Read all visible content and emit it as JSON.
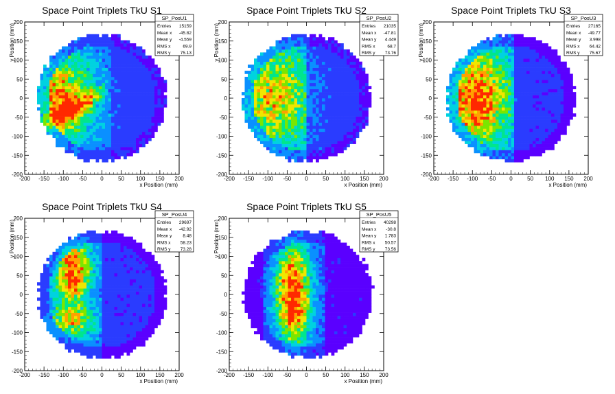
{
  "chart_data": [
    {
      "type": "heatmap",
      "title": "Space Point Triplets TkU S1",
      "xlabel": "x Position (mm)",
      "ylabel": "y Position (mm)",
      "xlim": [
        -200,
        200
      ],
      "ylim": [
        -200,
        200
      ],
      "xticks": [
        -200,
        -150,
        -100,
        -50,
        0,
        50,
        100,
        150,
        200
      ],
      "yticks": [
        -200,
        -150,
        -100,
        -50,
        0,
        50,
        100,
        150,
        200
      ],
      "stats": {
        "name": "SP_PosU1",
        "rows": [
          {
            "label": "Entries",
            "value": "15159"
          },
          {
            "label": "Mean x",
            "value": "-45.82"
          },
          {
            "label": "Mean y",
            "value": "-4.559"
          },
          {
            "label": "RMS x",
            "value": "69.9"
          },
          {
            "label": "RMS y",
            "value": "75.13"
          }
        ]
      }
    },
    {
      "type": "heatmap",
      "title": "Space Point Triplets TkU S2",
      "xlabel": "x Position (mm)",
      "ylabel": "y Position (mm)",
      "xlim": [
        -200,
        200
      ],
      "ylim": [
        -200,
        200
      ],
      "xticks": [
        -200,
        -150,
        -100,
        -50,
        0,
        50,
        100,
        150,
        200
      ],
      "yticks": [
        -200,
        -150,
        -100,
        -50,
        0,
        50,
        100,
        150,
        200
      ],
      "stats": {
        "name": "SP_PosU2",
        "rows": [
          {
            "label": "Entries",
            "value": "21035"
          },
          {
            "label": "Mean x",
            "value": "-47.81"
          },
          {
            "label": "Mean y",
            "value": "4.449"
          },
          {
            "label": "RMS x",
            "value": "68.7"
          },
          {
            "label": "RMS y",
            "value": "73.76"
          }
        ]
      }
    },
    {
      "type": "heatmap",
      "title": "Space Point Triplets TkU S3",
      "xlabel": "x Position (mm)",
      "ylabel": "y Position (mm)",
      "xlim": [
        -200,
        200
      ],
      "ylim": [
        -200,
        200
      ],
      "xticks": [
        -200,
        -150,
        -100,
        -50,
        0,
        50,
        100,
        150,
        200
      ],
      "yticks": [
        -200,
        -150,
        -100,
        -50,
        0,
        50,
        100,
        150,
        200
      ],
      "stats": {
        "name": "SP_PosU3",
        "rows": [
          {
            "label": "Entries",
            "value": "27165"
          },
          {
            "label": "Mean x",
            "value": "-49.77"
          },
          {
            "label": "Mean y",
            "value": "3.998"
          },
          {
            "label": "RMS x",
            "value": "64.42"
          },
          {
            "label": "RMS y",
            "value": "75.67"
          }
        ]
      }
    },
    {
      "type": "heatmap",
      "title": "Space Point Triplets TkU S4",
      "xlabel": "x Position (mm)",
      "ylabel": "y Position (mm)",
      "xlim": [
        -200,
        200
      ],
      "ylim": [
        -200,
        200
      ],
      "xticks": [
        -200,
        -150,
        -100,
        -50,
        0,
        50,
        100,
        150,
        200
      ],
      "yticks": [
        -200,
        -150,
        -100,
        -50,
        0,
        50,
        100,
        150,
        200
      ],
      "stats": {
        "name": "SP_PosU4",
        "rows": [
          {
            "label": "Entries",
            "value": "29697"
          },
          {
            "label": "Mean x",
            "value": "-42.92"
          },
          {
            "label": "Mean y",
            "value": "8.48"
          },
          {
            "label": "RMS x",
            "value": "58.23"
          },
          {
            "label": "RMS y",
            "value": "73.28"
          }
        ]
      }
    },
    {
      "type": "heatmap",
      "title": "Space Point Triplets TkU S5",
      "xlabel": "x Position (mm)",
      "ylabel": "y Position (mm)",
      "xlim": [
        -200,
        200
      ],
      "ylim": [
        -200,
        200
      ],
      "xticks": [
        -200,
        -150,
        -100,
        -50,
        0,
        50,
        100,
        150,
        200
      ],
      "yticks": [
        -200,
        -150,
        -100,
        -50,
        0,
        50,
        100,
        150,
        200
      ],
      "stats": {
        "name": "SP_PosU5",
        "rows": [
          {
            "label": "Entries",
            "value": "40298"
          },
          {
            "label": "Mean x",
            "value": "-30.8"
          },
          {
            "label": "Mean y",
            "value": "1.783"
          },
          {
            "label": "RMS x",
            "value": "50.57"
          },
          {
            "label": "RMS y",
            "value": "73.56"
          }
        ]
      }
    }
  ],
  "colors": {
    "palette": [
      "#5a00ff",
      "#2a3cff",
      "#0a90ff",
      "#00d2e0",
      "#00e68c",
      "#7ae600",
      "#f0e600",
      "#ffa000",
      "#ff2800"
    ]
  }
}
